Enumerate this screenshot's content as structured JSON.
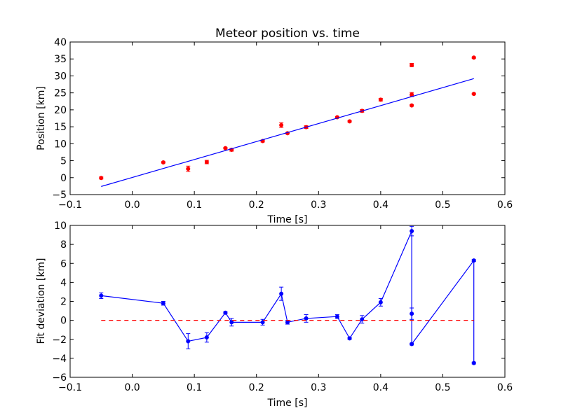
{
  "chart_data": [
    {
      "type": "scatter",
      "title": "Meteor position vs. time",
      "xlabel": "Time [s]",
      "ylabel": "Position [km]",
      "xlim": [
        -0.1,
        0.6
      ],
      "ylim": [
        -5,
        40
      ],
      "x_ticks": [
        "−0.1",
        "0.0",
        "0.1",
        "0.2",
        "0.3",
        "0.4",
        "0.5",
        "0.6"
      ],
      "y_ticks": [
        "−5",
        "0",
        "5",
        "10",
        "15",
        "20",
        "25",
        "30",
        "35",
        "40"
      ],
      "x_tick_values": [
        -0.1,
        0.0,
        0.1,
        0.2,
        0.3,
        0.4,
        0.5,
        0.6
      ],
      "y_tick_values": [
        -5,
        0,
        5,
        10,
        15,
        20,
        25,
        30,
        35,
        40
      ],
      "grid": false,
      "series": [
        {
          "type": "scatter-errorbar",
          "color": "#ff0000",
          "points": [
            {
              "x": -0.05,
              "y": -0.1,
              "err": 0.3
            },
            {
              "x": 0.05,
              "y": 4.5,
              "err": 0.2
            },
            {
              "x": 0.09,
              "y": 2.6,
              "err": 0.8
            },
            {
              "x": 0.12,
              "y": 4.6,
              "err": 0.5
            },
            {
              "x": 0.15,
              "y": 8.7,
              "err": 0.2
            },
            {
              "x": 0.16,
              "y": 8.2,
              "err": 0.4
            },
            {
              "x": 0.21,
              "y": 10.8,
              "err": 0.3
            },
            {
              "x": 0.24,
              "y": 15.5,
              "err": 0.7
            },
            {
              "x": 0.25,
              "y": 13.1,
              "err": 0.2
            },
            {
              "x": 0.28,
              "y": 14.9,
              "err": 0.4
            },
            {
              "x": 0.33,
              "y": 17.8,
              "err": 0.2
            },
            {
              "x": 0.35,
              "y": 16.6,
              "err": 0.2
            },
            {
              "x": 0.37,
              "y": 19.7,
              "err": 0.4
            },
            {
              "x": 0.4,
              "y": 23.0,
              "err": 0.4
            },
            {
              "x": 0.45,
              "y": 33.2,
              "err": 0.5
            },
            {
              "x": 0.45,
              "y": 24.5,
              "err": 0.6
            },
            {
              "x": 0.45,
              "y": 21.3,
              "err": 0.2
            },
            {
              "x": 0.55,
              "y": 35.4,
              "err": 0.2
            },
            {
              "x": 0.55,
              "y": 24.7,
              "err": 0.2
            }
          ]
        },
        {
          "type": "line",
          "color": "#0000ff",
          "x": [
            -0.05,
            0.55
          ],
          "y": [
            -2.6,
            29.2
          ]
        }
      ]
    },
    {
      "type": "line",
      "title": "",
      "xlabel": "Time [s]",
      "ylabel": "Fit deviation [km]",
      "xlim": [
        -0.1,
        0.6
      ],
      "ylim": [
        -6,
        10
      ],
      "x_ticks": [
        "−0.1",
        "0.0",
        "0.1",
        "0.2",
        "0.3",
        "0.4",
        "0.5",
        "0.6"
      ],
      "y_ticks": [
        "−6",
        "−4",
        "−2",
        "0",
        "2",
        "4",
        "6",
        "8",
        "10"
      ],
      "x_tick_values": [
        -0.1,
        0.0,
        0.1,
        0.2,
        0.3,
        0.4,
        0.5,
        0.6
      ],
      "y_tick_values": [
        -6,
        -4,
        -2,
        0,
        2,
        4,
        6,
        8,
        10
      ],
      "grid": false,
      "series": [
        {
          "type": "line-errorbar",
          "color": "#0000ff",
          "points": [
            {
              "x": -0.05,
              "y": 2.6,
              "err": 0.3
            },
            {
              "x": 0.05,
              "y": 1.8,
              "err": 0.2
            },
            {
              "x": 0.09,
              "y": -2.2,
              "err": 0.8
            },
            {
              "x": 0.12,
              "y": -1.8,
              "err": 0.5
            },
            {
              "x": 0.15,
              "y": 0.8,
              "err": 0.1
            },
            {
              "x": 0.16,
              "y": -0.2,
              "err": 0.4
            },
            {
              "x": 0.21,
              "y": -0.2,
              "err": 0.3
            },
            {
              "x": 0.24,
              "y": 2.8,
              "err": 0.7
            },
            {
              "x": 0.25,
              "y": -0.2,
              "err": 0.2
            },
            {
              "x": 0.28,
              "y": 0.2,
              "err": 0.4
            },
            {
              "x": 0.33,
              "y": 0.4,
              "err": 0.2
            },
            {
              "x": 0.35,
              "y": -1.9,
              "err": 0.1
            },
            {
              "x": 0.37,
              "y": 0.1,
              "err": 0.4
            },
            {
              "x": 0.4,
              "y": 1.9,
              "err": 0.4
            },
            {
              "x": 0.45,
              "y": 9.4,
              "err": 0.5
            },
            {
              "x": 0.45,
              "y": 0.7,
              "err": 0.6
            },
            {
              "x": 0.45,
              "y": -2.5,
              "err": 0.1
            },
            {
              "x": 0.55,
              "y": 6.3,
              "err": 0.1
            },
            {
              "x": 0.55,
              "y": -4.5,
              "err": 0.1
            }
          ]
        },
        {
          "type": "dashed-line",
          "color": "#ff0000",
          "x": [
            -0.05,
            0.55
          ],
          "y": [
            0,
            0
          ]
        }
      ]
    }
  ]
}
